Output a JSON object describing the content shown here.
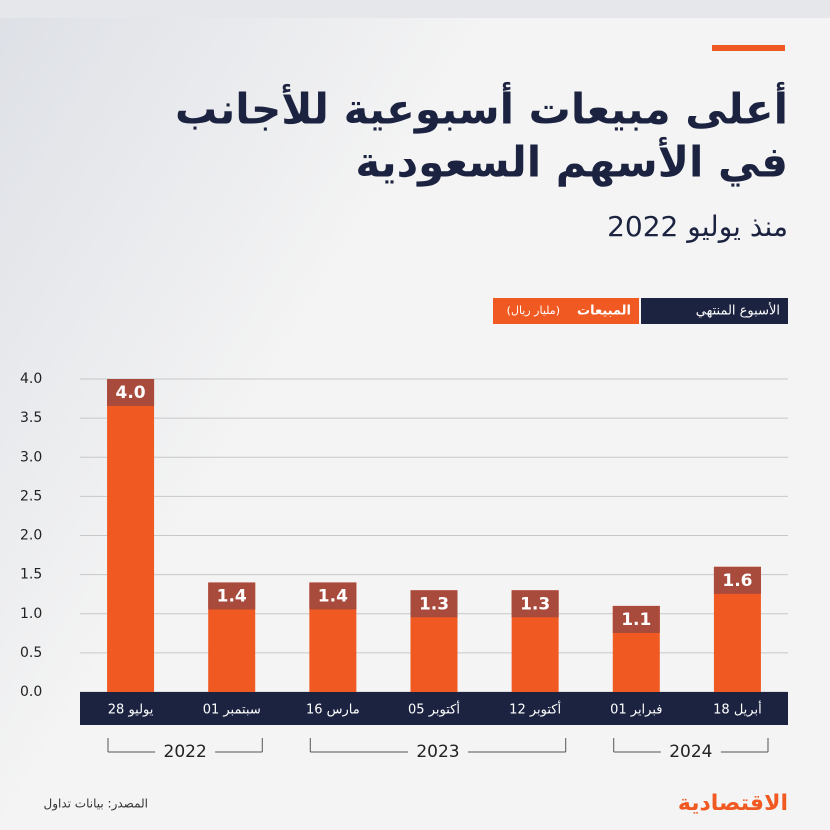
{
  "chart_data": {
    "type": "bar",
    "title": [
      "أعلى مبيعات أسبوعية للأجانب",
      "في الأسهم السعودية"
    ],
    "subtitle": "منذ يوليو 2022",
    "legend": {
      "category": "الأسبوع المنتهي",
      "value": "المبيعات",
      "unit": "(مليار ريال)"
    },
    "categories": [
      "28 يوليو",
      "01 سبتمبر",
      "16 مارس",
      "05 أكتوبر",
      "12 أكتوبر",
      "01 فبراير",
      "18 أبريل"
    ],
    "values": [
      4.0,
      1.4,
      1.4,
      1.3,
      1.3,
      1.1,
      1.6
    ],
    "value_labels": [
      "4.0",
      "1.4",
      "1.4",
      "1.3",
      "1.3",
      "1.1",
      "1.6"
    ],
    "color": "#f05a22",
    "cap_color": "#a84a3c",
    "ylim": [
      0,
      4
    ],
    "yticks": [
      {
        "value": 0,
        "label": "0.0"
      },
      0.5,
      {
        "value": 1,
        "label": "1.0"
      },
      1.5,
      {
        "value": 2,
        "label": "2.0"
      },
      2.5,
      {
        "value": 3,
        "label": "3.0"
      },
      3.5,
      {
        "value": 4,
        "label": "4.0"
      }
    ],
    "grid": true,
    "year_groups": [
      {
        "label": "2022",
        "span": 2
      },
      {
        "label": "2023",
        "span": 3
      },
      {
        "label": "2024",
        "span": 2
      }
    ],
    "source": "المصدر: بيانات تداول",
    "logo": "الاقتصادية"
  }
}
